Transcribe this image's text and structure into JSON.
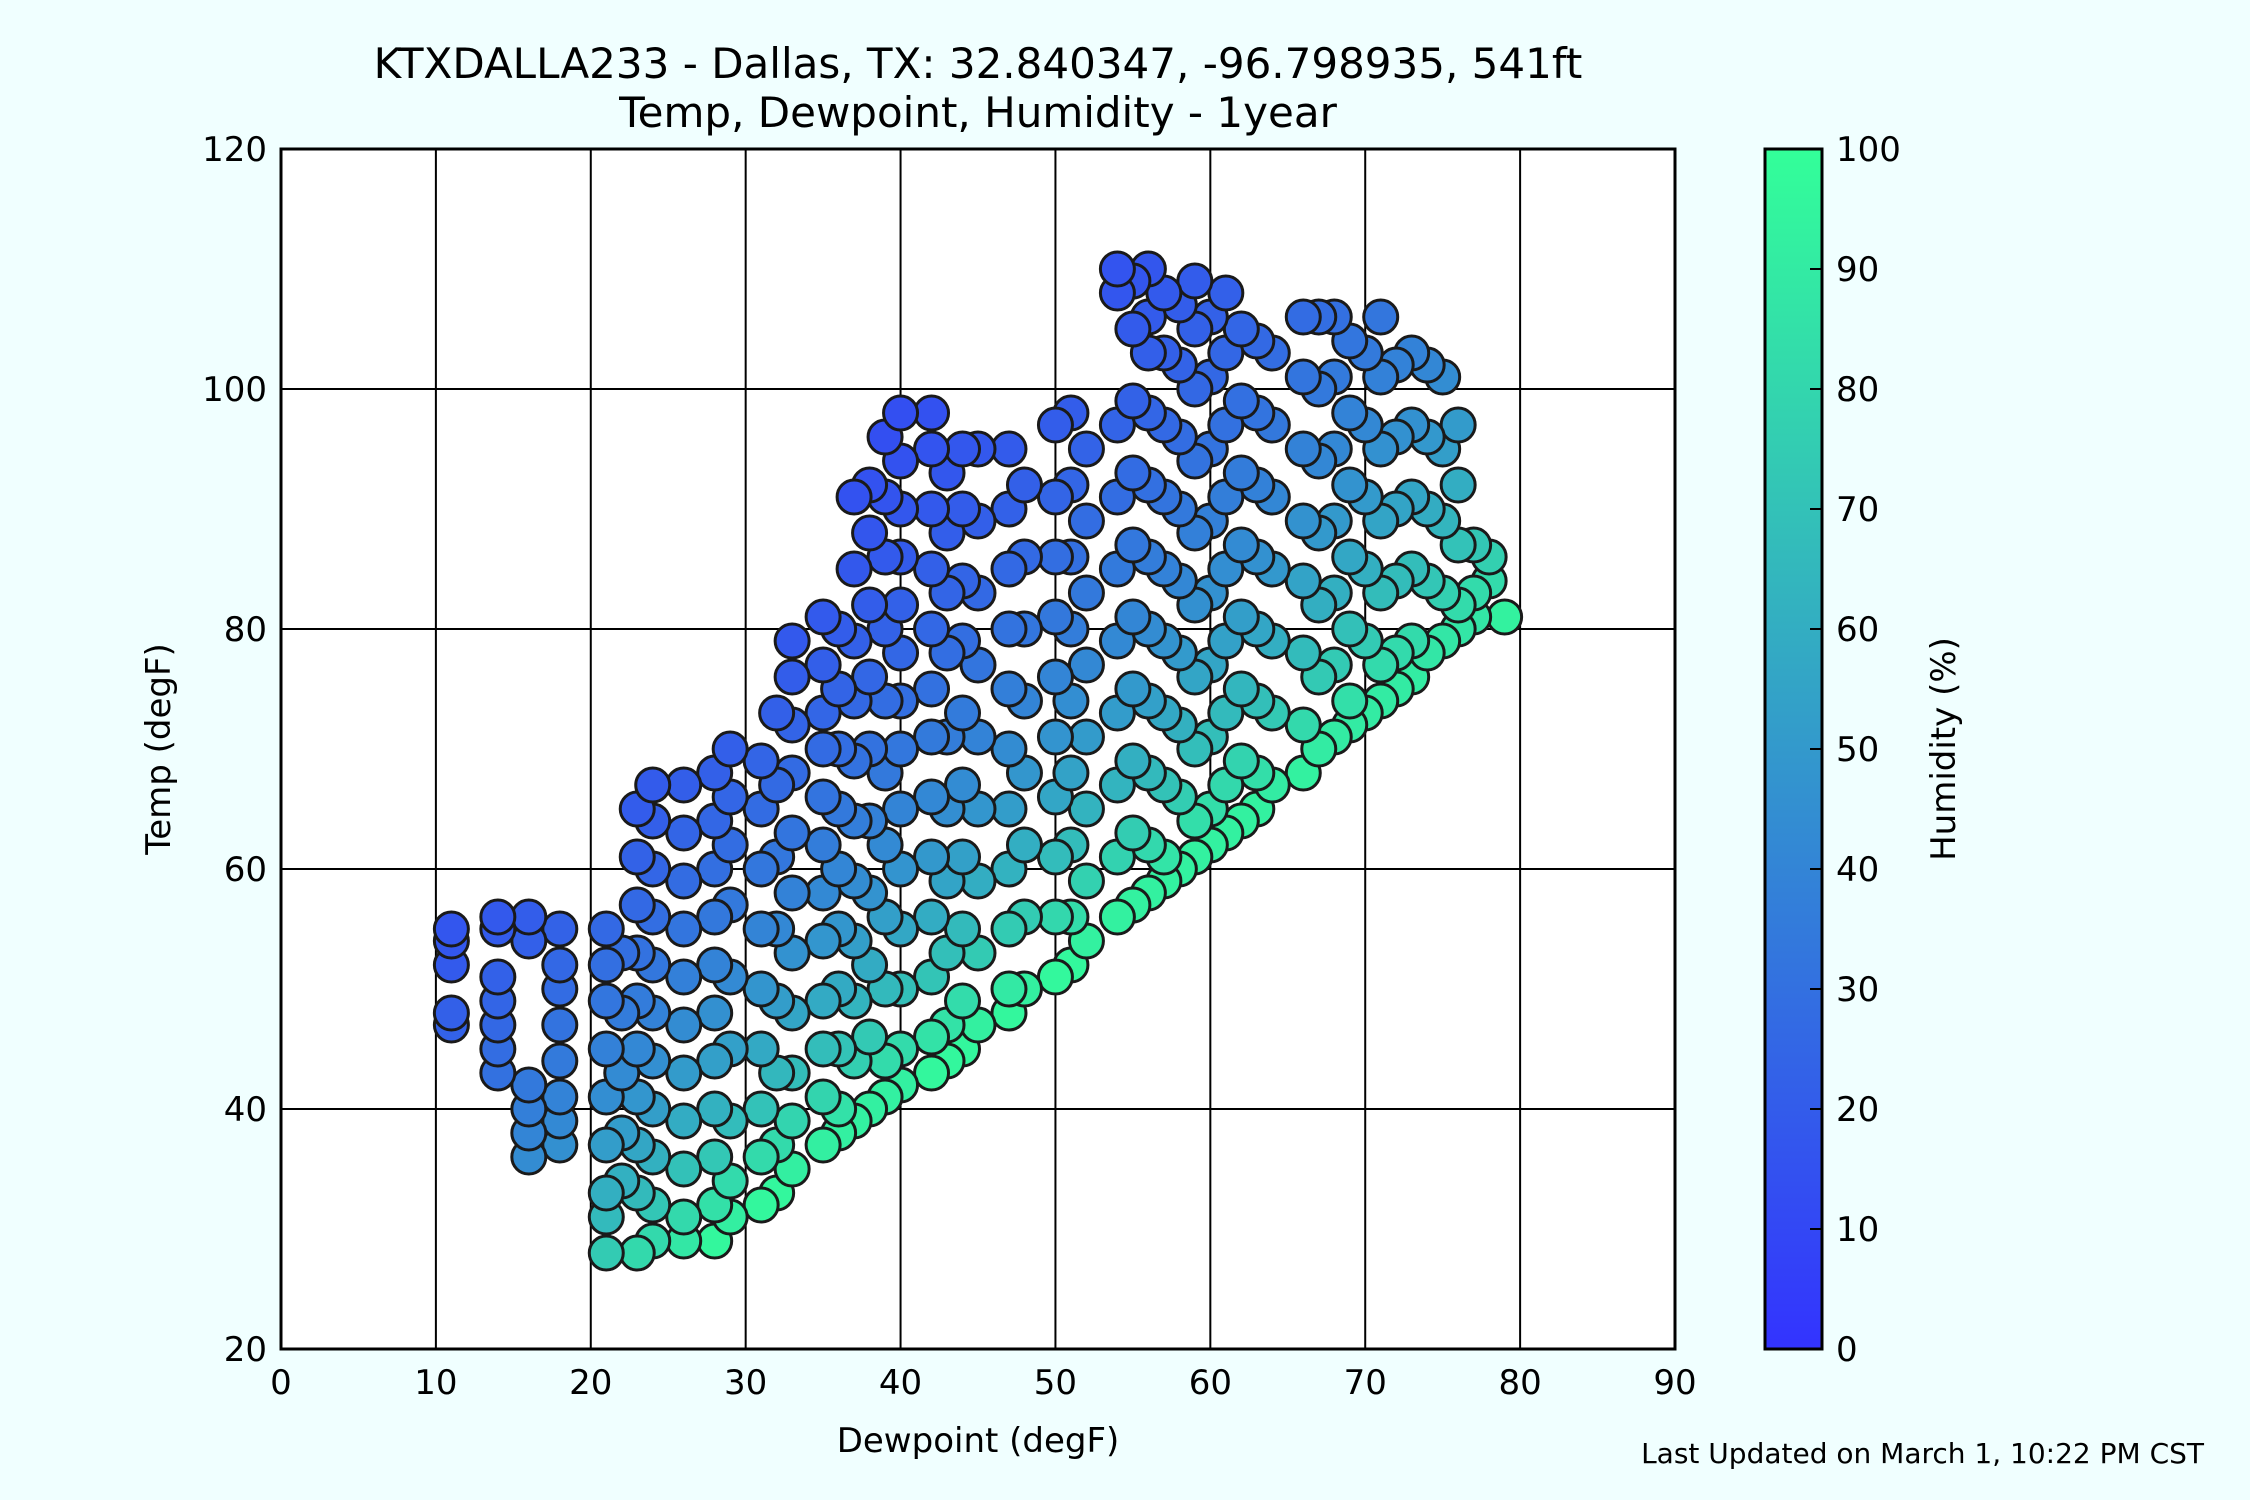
{
  "chart_data": {
    "type": "scatter",
    "title": "KTXDALLA233 - Dallas, TX: 32.840347, -96.798935, 541ft",
    "subtitle": "Temp, Dewpoint, Humidity - 1year",
    "xlabel": "Dewpoint (degF)",
    "ylabel": "Temp (degF)",
    "xlim": [
      0,
      90
    ],
    "ylim": [
      20,
      120
    ],
    "xticks": [
      "0",
      "10",
      "20",
      "30",
      "40",
      "50",
      "60",
      "70",
      "80",
      "90"
    ],
    "yticks": [
      "20",
      "40",
      "60",
      "80",
      "100",
      "120"
    ],
    "grid": true,
    "colorbar": {
      "label": "Humidity (%)",
      "range": [
        0,
        100
      ],
      "ticks": [
        "0",
        "10",
        "20",
        "30",
        "40",
        "50",
        "60",
        "70",
        "80",
        "90",
        "100"
      ],
      "color_low": "#3333ff",
      "color_high": "#33ff99"
    },
    "point_edge_color": "#1a1a1a",
    "points": [
      [
        11,
        55
      ],
      [
        11,
        54
      ],
      [
        11,
        52
      ],
      [
        11,
        48
      ],
      [
        11,
        47
      ],
      [
        14,
        56
      ],
      [
        14,
        55
      ],
      [
        14,
        51
      ],
      [
        14,
        49
      ],
      [
        14,
        47
      ],
      [
        14,
        45
      ],
      [
        14,
        43
      ],
      [
        16,
        56
      ],
      [
        16,
        54
      ],
      [
        16,
        42
      ],
      [
        16,
        40
      ],
      [
        16,
        38
      ],
      [
        16,
        36
      ],
      [
        18,
        55
      ],
      [
        18,
        52
      ],
      [
        18,
        50
      ],
      [
        18,
        47
      ],
      [
        18,
        44
      ],
      [
        18,
        41
      ],
      [
        18,
        39
      ],
      [
        18,
        37
      ],
      [
        21,
        55
      ],
      [
        21,
        52
      ],
      [
        21,
        49
      ],
      [
        21,
        45
      ],
      [
        21,
        41
      ],
      [
        21,
        37
      ],
      [
        21,
        33
      ],
      [
        21,
        31
      ],
      [
        21,
        28
      ],
      [
        22,
        53
      ],
      [
        22,
        48
      ],
      [
        22,
        43
      ],
      [
        22,
        38
      ],
      [
        22,
        34
      ],
      [
        23,
        65
      ],
      [
        23,
        61
      ],
      [
        23,
        57
      ],
      [
        23,
        53
      ],
      [
        23,
        49
      ],
      [
        23,
        45
      ],
      [
        23,
        41
      ],
      [
        23,
        37
      ],
      [
        23,
        33
      ],
      [
        23,
        28
      ],
      [
        24,
        67
      ],
      [
        24,
        64
      ],
      [
        24,
        60
      ],
      [
        24,
        56
      ],
      [
        24,
        52
      ],
      [
        24,
        48
      ],
      [
        24,
        44
      ],
      [
        24,
        40
      ],
      [
        24,
        36
      ],
      [
        24,
        32
      ],
      [
        24,
        29
      ],
      [
        26,
        67
      ],
      [
        26,
        63
      ],
      [
        26,
        59
      ],
      [
        26,
        55
      ],
      [
        26,
        51
      ],
      [
        26,
        47
      ],
      [
        26,
        43
      ],
      [
        26,
        39
      ],
      [
        26,
        35
      ],
      [
        26,
        31
      ],
      [
        26,
        29
      ],
      [
        28,
        68
      ],
      [
        28,
        64
      ],
      [
        28,
        60
      ],
      [
        28,
        56
      ],
      [
        28,
        52
      ],
      [
        28,
        48
      ],
      [
        28,
        44
      ],
      [
        28,
        40
      ],
      [
        28,
        36
      ],
      [
        28,
        32
      ],
      [
        28,
        29
      ],
      [
        29,
        70
      ],
      [
        29,
        66
      ],
      [
        29,
        62
      ],
      [
        29,
        57
      ],
      [
        29,
        51
      ],
      [
        29,
        45
      ],
      [
        29,
        39
      ],
      [
        29,
        34
      ],
      [
        29,
        31
      ],
      [
        31,
        69
      ],
      [
        31,
        65
      ],
      [
        31,
        60
      ],
      [
        31,
        55
      ],
      [
        31,
        50
      ],
      [
        31,
        45
      ],
      [
        31,
        40
      ],
      [
        31,
        36
      ],
      [
        31,
        32
      ],
      [
        32,
        73
      ],
      [
        32,
        67
      ],
      [
        32,
        61
      ],
      [
        32,
        55
      ],
      [
        32,
        49
      ],
      [
        32,
        43
      ],
      [
        32,
        37
      ],
      [
        32,
        33
      ],
      [
        33,
        79
      ],
      [
        33,
        76
      ],
      [
        33,
        72
      ],
      [
        33,
        68
      ],
      [
        33,
        63
      ],
      [
        33,
        58
      ],
      [
        33,
        53
      ],
      [
        33,
        48
      ],
      [
        33,
        43
      ],
      [
        33,
        39
      ],
      [
        33,
        35
      ],
      [
        35,
        81
      ],
      [
        35,
        77
      ],
      [
        35,
        73
      ],
      [
        35,
        70
      ],
      [
        35,
        66
      ],
      [
        35,
        62
      ],
      [
        35,
        58
      ],
      [
        35,
        54
      ],
      [
        35,
        49
      ],
      [
        35,
        45
      ],
      [
        35,
        41
      ],
      [
        35,
        37
      ],
      [
        36,
        80
      ],
      [
        36,
        75
      ],
      [
        36,
        70
      ],
      [
        36,
        65
      ],
      [
        36,
        60
      ],
      [
        36,
        55
      ],
      [
        36,
        50
      ],
      [
        36,
        45
      ],
      [
        36,
        40
      ],
      [
        36,
        38
      ],
      [
        37,
        91
      ],
      [
        37,
        85
      ],
      [
        37,
        79
      ],
      [
        37,
        74
      ],
      [
        37,
        69
      ],
      [
        37,
        64
      ],
      [
        37,
        59
      ],
      [
        37,
        54
      ],
      [
        37,
        49
      ],
      [
        37,
        44
      ],
      [
        37,
        39
      ],
      [
        38,
        92
      ],
      [
        38,
        88
      ],
      [
        38,
        82
      ],
      [
        38,
        76
      ],
      [
        38,
        70
      ],
      [
        38,
        64
      ],
      [
        38,
        58
      ],
      [
        38,
        52
      ],
      [
        38,
        46
      ],
      [
        38,
        40
      ],
      [
        39,
        96
      ],
      [
        39,
        91
      ],
      [
        39,
        86
      ],
      [
        39,
        80
      ],
      [
        39,
        74
      ],
      [
        39,
        68
      ],
      [
        39,
        62
      ],
      [
        39,
        56
      ],
      [
        39,
        50
      ],
      [
        39,
        44
      ],
      [
        39,
        41
      ],
      [
        40,
        98
      ],
      [
        40,
        94
      ],
      [
        40,
        90
      ],
      [
        40,
        86
      ],
      [
        40,
        82
      ],
      [
        40,
        78
      ],
      [
        40,
        74
      ],
      [
        40,
        70
      ],
      [
        40,
        65
      ],
      [
        40,
        60
      ],
      [
        40,
        55
      ],
      [
        40,
        50
      ],
      [
        40,
        45
      ],
      [
        40,
        42
      ],
      [
        42,
        98
      ],
      [
        42,
        95
      ],
      [
        42,
        90
      ],
      [
        42,
        85
      ],
      [
        42,
        80
      ],
      [
        42,
        75
      ],
      [
        42,
        71
      ],
      [
        42,
        66
      ],
      [
        42,
        61
      ],
      [
        42,
        56
      ],
      [
        42,
        51
      ],
      [
        42,
        46
      ],
      [
        42,
        43
      ],
      [
        43,
        93
      ],
      [
        43,
        88
      ],
      [
        43,
        83
      ],
      [
        43,
        78
      ],
      [
        43,
        71
      ],
      [
        43,
        65
      ],
      [
        43,
        59
      ],
      [
        43,
        53
      ],
      [
        43,
        47
      ],
      [
        43,
        44
      ],
      [
        44,
        95
      ],
      [
        44,
        90
      ],
      [
        44,
        84
      ],
      [
        44,
        79
      ],
      [
        44,
        73
      ],
      [
        44,
        67
      ],
      [
        44,
        61
      ],
      [
        44,
        55
      ],
      [
        44,
        49
      ],
      [
        44,
        45
      ],
      [
        45,
        95
      ],
      [
        45,
        89
      ],
      [
        45,
        83
      ],
      [
        45,
        77
      ],
      [
        45,
        71
      ],
      [
        45,
        65
      ],
      [
        45,
        59
      ],
      [
        45,
        53
      ],
      [
        45,
        47
      ],
      [
        47,
        95
      ],
      [
        47,
        90
      ],
      [
        47,
        85
      ],
      [
        47,
        80
      ],
      [
        47,
        75
      ],
      [
        47,
        70
      ],
      [
        47,
        65
      ],
      [
        47,
        60
      ],
      [
        47,
        55
      ],
      [
        47,
        50
      ],
      [
        47,
        48
      ],
      [
        48,
        92
      ],
      [
        48,
        86
      ],
      [
        48,
        80
      ],
      [
        48,
        74
      ],
      [
        48,
        68
      ],
      [
        48,
        62
      ],
      [
        48,
        56
      ],
      [
        48,
        50
      ],
      [
        50,
        97
      ],
      [
        50,
        91
      ],
      [
        50,
        86
      ],
      [
        50,
        81
      ],
      [
        50,
        76
      ],
      [
        50,
        71
      ],
      [
        50,
        66
      ],
      [
        50,
        61
      ],
      [
        50,
        56
      ],
      [
        50,
        51
      ],
      [
        51,
        98
      ],
      [
        51,
        92
      ],
      [
        51,
        86
      ],
      [
        51,
        80
      ],
      [
        51,
        74
      ],
      [
        51,
        68
      ],
      [
        51,
        62
      ],
      [
        51,
        56
      ],
      [
        51,
        52
      ],
      [
        52,
        95
      ],
      [
        52,
        89
      ],
      [
        52,
        83
      ],
      [
        52,
        77
      ],
      [
        52,
        71
      ],
      [
        52,
        65
      ],
      [
        52,
        59
      ],
      [
        52,
        54
      ],
      [
        54,
        110
      ],
      [
        54,
        108
      ],
      [
        54,
        97
      ],
      [
        54,
        91
      ],
      [
        54,
        85
      ],
      [
        54,
        79
      ],
      [
        54,
        73
      ],
      [
        54,
        67
      ],
      [
        54,
        61
      ],
      [
        54,
        56
      ],
      [
        55,
        109
      ],
      [
        55,
        105
      ],
      [
        55,
        99
      ],
      [
        55,
        93
      ],
      [
        55,
        87
      ],
      [
        55,
        81
      ],
      [
        55,
        75
      ],
      [
        55,
        69
      ],
      [
        55,
        63
      ],
      [
        55,
        57
      ],
      [
        56,
        110
      ],
      [
        56,
        106
      ],
      [
        56,
        103
      ],
      [
        56,
        98
      ],
      [
        56,
        92
      ],
      [
        56,
        86
      ],
      [
        56,
        80
      ],
      [
        56,
        74
      ],
      [
        56,
        68
      ],
      [
        56,
        62
      ],
      [
        56,
        58
      ],
      [
        57,
        108
      ],
      [
        57,
        103
      ],
      [
        57,
        97
      ],
      [
        57,
        91
      ],
      [
        57,
        85
      ],
      [
        57,
        79
      ],
      [
        57,
        73
      ],
      [
        57,
        67
      ],
      [
        57,
        61
      ],
      [
        57,
        59
      ],
      [
        58,
        107
      ],
      [
        58,
        102
      ],
      [
        58,
        96
      ],
      [
        58,
        90
      ],
      [
        58,
        84
      ],
      [
        58,
        78
      ],
      [
        58,
        72
      ],
      [
        58,
        66
      ],
      [
        58,
        60
      ],
      [
        59,
        109
      ],
      [
        59,
        105
      ],
      [
        59,
        100
      ],
      [
        59,
        94
      ],
      [
        59,
        88
      ],
      [
        59,
        82
      ],
      [
        59,
        76
      ],
      [
        59,
        70
      ],
      [
        59,
        64
      ],
      [
        59,
        61
      ],
      [
        60,
        106
      ],
      [
        60,
        101
      ],
      [
        60,
        95
      ],
      [
        60,
        89
      ],
      [
        60,
        83
      ],
      [
        60,
        77
      ],
      [
        60,
        71
      ],
      [
        60,
        65
      ],
      [
        60,
        62
      ],
      [
        61,
        108
      ],
      [
        61,
        103
      ],
      [
        61,
        97
      ],
      [
        61,
        91
      ],
      [
        61,
        85
      ],
      [
        61,
        79
      ],
      [
        61,
        73
      ],
      [
        61,
        67
      ],
      [
        61,
        63
      ],
      [
        62,
        105
      ],
      [
        62,
        99
      ],
      [
        62,
        93
      ],
      [
        62,
        87
      ],
      [
        62,
        81
      ],
      [
        62,
        75
      ],
      [
        62,
        69
      ],
      [
        62,
        64
      ],
      [
        63,
        104
      ],
      [
        63,
        98
      ],
      [
        63,
        92
      ],
      [
        63,
        86
      ],
      [
        63,
        80
      ],
      [
        63,
        74
      ],
      [
        63,
        68
      ],
      [
        63,
        65
      ],
      [
        64,
        103
      ],
      [
        64,
        97
      ],
      [
        64,
        91
      ],
      [
        64,
        85
      ],
      [
        64,
        79
      ],
      [
        64,
        73
      ],
      [
        64,
        67
      ],
      [
        66,
        106
      ],
      [
        66,
        101
      ],
      [
        66,
        95
      ],
      [
        66,
        89
      ],
      [
        66,
        84
      ],
      [
        66,
        78
      ],
      [
        66,
        72
      ],
      [
        66,
        68
      ],
      [
        67,
        106
      ],
      [
        67,
        100
      ],
      [
        67,
        94
      ],
      [
        67,
        88
      ],
      [
        67,
        82
      ],
      [
        67,
        76
      ],
      [
        67,
        70
      ],
      [
        68,
        106
      ],
      [
        68,
        101
      ],
      [
        68,
        95
      ],
      [
        68,
        89
      ],
      [
        68,
        83
      ],
      [
        68,
        77
      ],
      [
        68,
        71
      ],
      [
        69,
        104
      ],
      [
        69,
        98
      ],
      [
        69,
        92
      ],
      [
        69,
        86
      ],
      [
        69,
        80
      ],
      [
        69,
        74
      ],
      [
        69,
        72
      ],
      [
        70,
        103
      ],
      [
        70,
        97
      ],
      [
        70,
        91
      ],
      [
        70,
        85
      ],
      [
        70,
        79
      ],
      [
        70,
        73
      ],
      [
        71,
        106
      ],
      [
        71,
        101
      ],
      [
        71,
        95
      ],
      [
        71,
        89
      ],
      [
        71,
        83
      ],
      [
        71,
        77
      ],
      [
        71,
        74
      ],
      [
        72,
        102
      ],
      [
        72,
        96
      ],
      [
        72,
        90
      ],
      [
        72,
        84
      ],
      [
        72,
        78
      ],
      [
        72,
        75
      ],
      [
        73,
        103
      ],
      [
        73,
        97
      ],
      [
        73,
        91
      ],
      [
        73,
        85
      ],
      [
        73,
        79
      ],
      [
        73,
        76
      ],
      [
        74,
        102
      ],
      [
        74,
        96
      ],
      [
        74,
        90
      ],
      [
        74,
        84
      ],
      [
        74,
        78
      ],
      [
        75,
        101
      ],
      [
        75,
        95
      ],
      [
        75,
        89
      ],
      [
        75,
        83
      ],
      [
        75,
        79
      ],
      [
        76,
        97
      ],
      [
        76,
        92
      ],
      [
        76,
        87
      ],
      [
        76,
        82
      ],
      [
        76,
        80
      ],
      [
        77,
        87
      ],
      [
        77,
        83
      ],
      [
        77,
        81
      ],
      [
        78,
        86
      ],
      [
        78,
        84
      ],
      [
        79,
        81
      ]
    ]
  },
  "footer": {
    "updated": "Last Updated on March 1, 10:22 PM CST"
  }
}
